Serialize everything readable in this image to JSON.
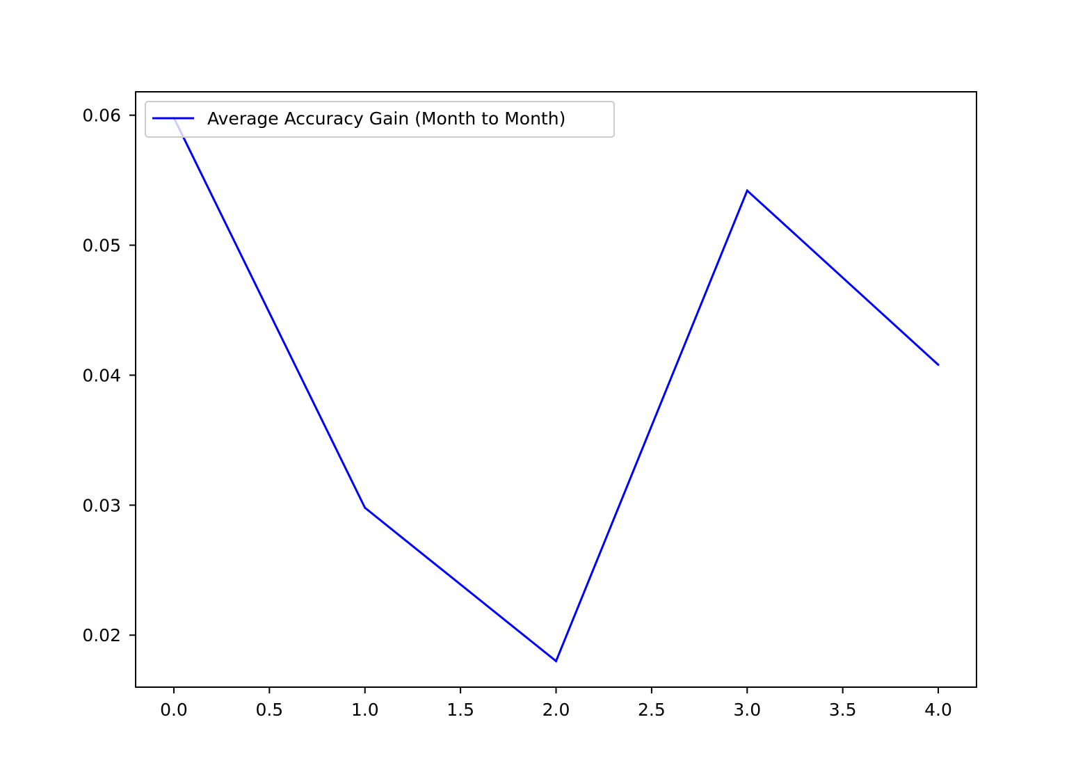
{
  "chart_data": {
    "type": "line",
    "title": "",
    "xlabel": "",
    "ylabel": "",
    "xlim": [
      -0.2,
      4.2
    ],
    "ylim": [
      0.016,
      0.0618
    ],
    "xticks": [
      0.0,
      0.5,
      1.0,
      1.5,
      2.0,
      2.5,
      3.0,
      3.5,
      4.0
    ],
    "xtick_labels": [
      "0.0",
      "0.5",
      "1.0",
      "1.5",
      "2.0",
      "2.5",
      "3.0",
      "3.5",
      "4.0"
    ],
    "yticks": [
      0.02,
      0.03,
      0.04,
      0.05,
      0.06
    ],
    "ytick_labels": [
      "0.02",
      "0.03",
      "0.04",
      "0.05",
      "0.06"
    ],
    "grid": false,
    "legend_position": "top-left",
    "series": [
      {
        "name": "Average Accuracy Gain (Month to Month)",
        "color": "#0000ff",
        "x": [
          0,
          1,
          2,
          3,
          4
        ],
        "y": [
          0.0598,
          0.0298,
          0.018,
          0.0542,
          0.0408
        ]
      }
    ]
  }
}
